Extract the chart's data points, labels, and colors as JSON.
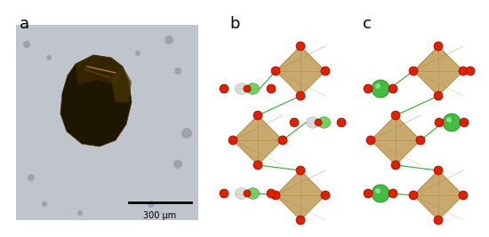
{
  "fig_width": 5.5,
  "fig_height": 2.67,
  "dpi": 100,
  "bg_color": "#ffffff",
  "label_a": "a",
  "label_b": "b",
  "label_c": "c",
  "scale_bar_text": "300 μm",
  "octahedron_color": "#c8a96e",
  "octahedron_edge_color": "#b89050",
  "red_ion_color": "#dd2200",
  "green_ion_color": "#44bb44",
  "photo_bg_color": "#c0c4cc",
  "crystal_color": "#2a1e00",
  "crystal_highlight": "#5a3800"
}
